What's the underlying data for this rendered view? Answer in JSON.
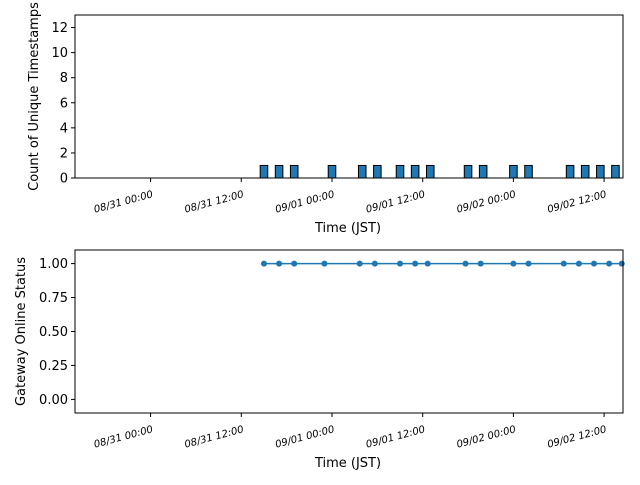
{
  "colors": {
    "bar": "#1f77b4",
    "line": "#1f77b4",
    "edge": "#000000"
  },
  "charts": [
    {
      "type": "bar",
      "xlabel": "Time (JST)",
      "ylabel": "Count of Unique Timestamps",
      "ylim": [
        0,
        13
      ],
      "yticks": [
        "0",
        "2",
        "4",
        "6",
        "8",
        "10",
        "12"
      ],
      "xlim": [
        "2024-08-30T14:00",
        "2024-09-02T14:30"
      ],
      "xticks": [
        "08/31 00:00",
        "08/31 12:00",
        "09/01 00:00",
        "09/01 12:00",
        "09/02 00:00",
        "09/02 12:00"
      ],
      "grid": false
    },
    {
      "type": "line",
      "xlabel": "Time (JST)",
      "ylabel": "Gateway Online Status",
      "ylim": [
        -0.1,
        1.1
      ],
      "yticks": [
        "0.00",
        "0.25",
        "0.50",
        "0.75",
        "1.00"
      ],
      "xlim": [
        "2024-08-30T14:00",
        "2024-09-02T14:30"
      ],
      "xticks": [
        "08/31 00:00",
        "08/31 12:00",
        "09/01 00:00",
        "09/01 12:00",
        "09/02 00:00",
        "09/02 12:00"
      ],
      "grid": false
    }
  ],
  "chart_data": [
    {
      "type": "bar",
      "bar_width_hours": 1,
      "series": [
        {
          "x": [
            "2024-08-31T15:00",
            "2024-08-31T17:00",
            "2024-08-31T19:00",
            "2024-09-01T00:00",
            "2024-09-01T04:00",
            "2024-09-01T06:00",
            "2024-09-01T09:00",
            "2024-09-01T11:00",
            "2024-09-01T13:00",
            "2024-09-01T18:00",
            "2024-09-01T20:00",
            "2024-09-02T00:00",
            "2024-09-02T02:00",
            "2024-09-02T07:30",
            "2024-09-02T09:30",
            "2024-09-02T11:30",
            "2024-09-02T13:30"
          ],
          "values": [
            1,
            1,
            1,
            1,
            1,
            1,
            1,
            1,
            1,
            1,
            1,
            1,
            1,
            1,
            1,
            1,
            1
          ]
        }
      ]
    },
    {
      "type": "line",
      "series": [
        {
          "x": [
            "2024-08-31T15:00",
            "2024-08-31T17:00",
            "2024-08-31T19:00",
            "2024-08-31T23:00",
            "2024-09-01T03:40",
            "2024-09-01T05:40",
            "2024-09-01T09:00",
            "2024-09-01T11:00",
            "2024-09-01T12:40",
            "2024-09-01T17:40",
            "2024-09-01T19:40",
            "2024-09-02T00:00",
            "2024-09-02T02:00",
            "2024-09-02T06:40",
            "2024-09-02T08:40",
            "2024-09-02T10:40",
            "2024-09-02T12:40",
            "2024-09-02T14:20"
          ],
          "values": [
            1,
            1,
            1,
            1,
            1,
            1,
            1,
            1,
            1,
            1,
            1,
            1,
            1,
            1,
            1,
            1,
            1,
            1
          ]
        }
      ]
    }
  ]
}
